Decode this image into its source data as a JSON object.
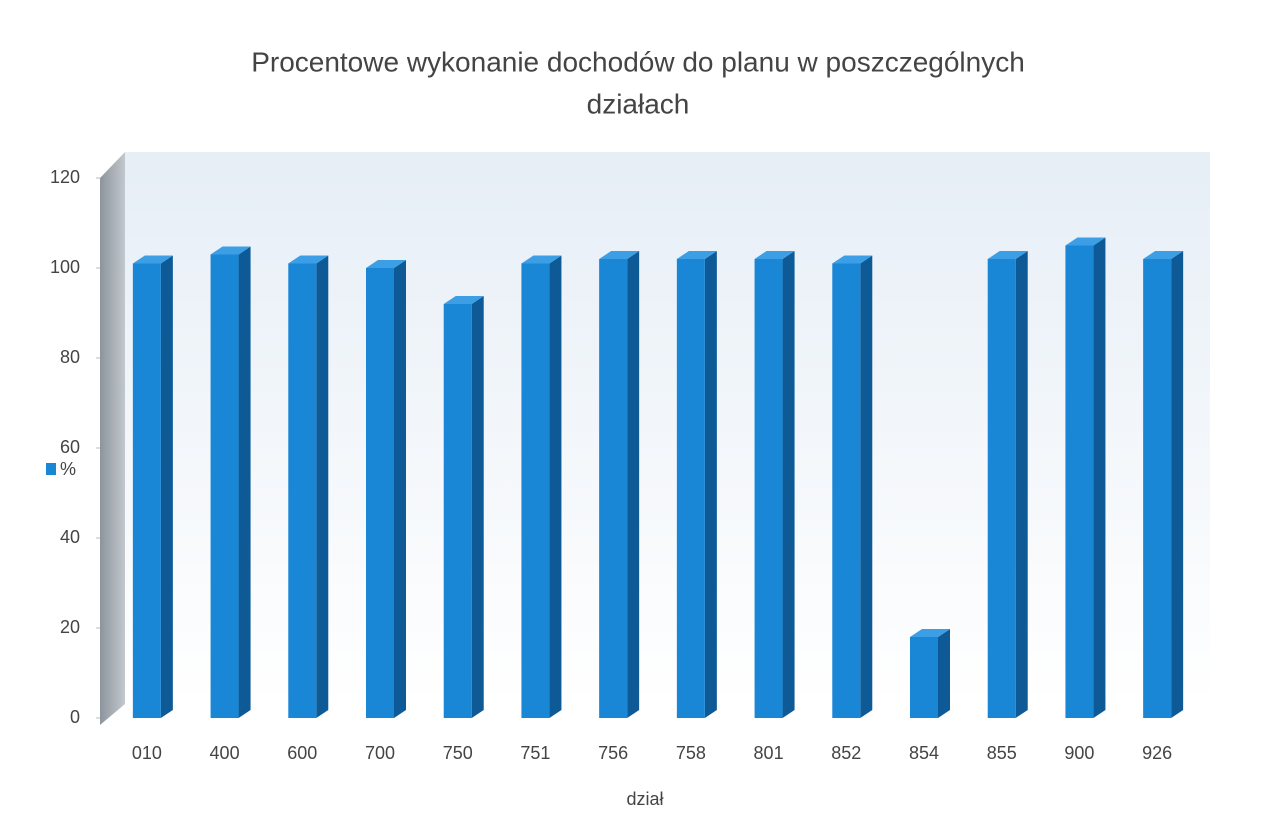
{
  "chart_data": {
    "type": "bar3d",
    "title": "Procentowe wykonanie dochodów do planu w poszczególnych działach",
    "x_label": "dział",
    "categories": [
      "010",
      "400",
      "600",
      "700",
      "750",
      "751",
      "756",
      "758",
      "801",
      "852",
      "854",
      "855",
      "900",
      "926"
    ],
    "series": [
      {
        "name": "%",
        "color": "#1a86d6",
        "values": [
          101,
          103,
          101,
          100,
          92,
          101,
          102,
          102,
          102,
          101,
          18,
          102,
          105,
          102
        ]
      }
    ],
    "ylim": [
      0,
      120
    ],
    "yticks": [
      0,
      20,
      40,
      60,
      80,
      100,
      120
    ],
    "legend": "left"
  }
}
